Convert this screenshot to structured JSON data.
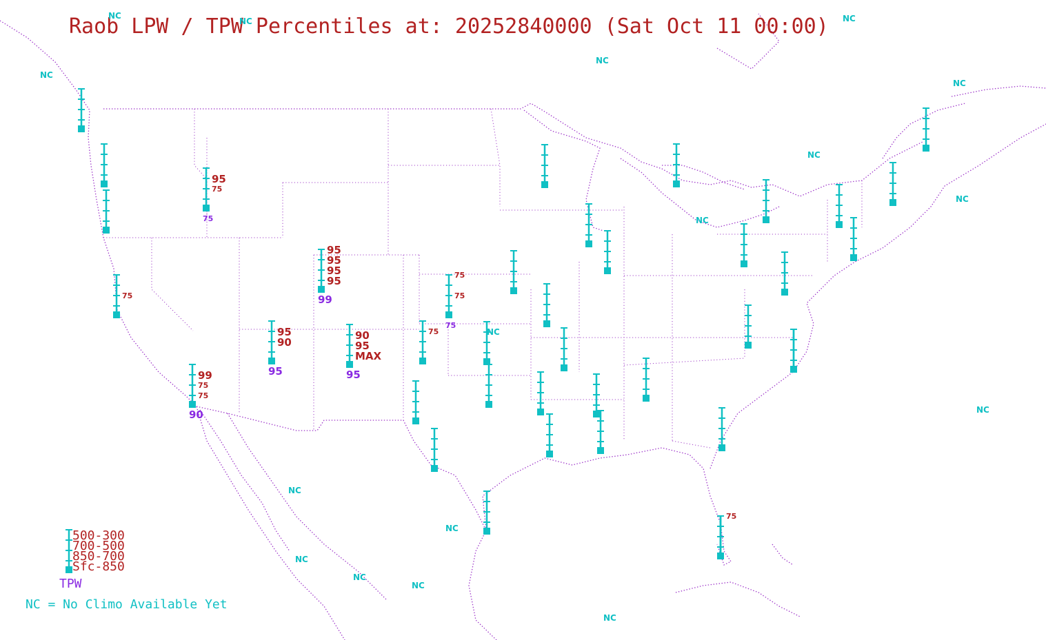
{
  "title": "Raob LPW / TPW Percentiles at: 20252840000 (Sat Oct 11 00:00)",
  "colors": {
    "title": "#b22222",
    "tpw": "#8a2be2",
    "station": "#10c0c4",
    "map_lines": "#9b30c8"
  },
  "nc_label": "NC",
  "legend": {
    "layers": [
      "500-300",
      "700-500",
      "850-700",
      "Sfc-850"
    ],
    "tpw_label": "TPW",
    "note": "NC = No Climo Available Yet"
  },
  "stations": [
    {
      "id": "s01",
      "layers": [
        "",
        "",
        "",
        ""
      ],
      "tpw": ""
    },
    {
      "id": "s02",
      "layers": [
        "",
        "",
        "",
        ""
      ],
      "tpw": ""
    },
    {
      "id": "s03",
      "layers": [
        "",
        "",
        "",
        ""
      ],
      "tpw": ""
    },
    {
      "id": "s04",
      "layers": [
        "",
        "95",
        "75",
        ""
      ],
      "tpw": "75"
    },
    {
      "id": "s05",
      "layers": [
        "",
        "",
        "75",
        ""
      ],
      "tpw": ""
    },
    {
      "id": "s06",
      "layers": [
        "95",
        "95",
        "95",
        "95"
      ],
      "tpw": "99"
    },
    {
      "id": "s07",
      "layers": [
        "",
        "95",
        "90",
        ""
      ],
      "tpw": "95"
    },
    {
      "id": "s08",
      "layers": [
        "",
        "90",
        "95",
        "MAX"
      ],
      "tpw": "95"
    },
    {
      "id": "s09",
      "layers": [
        "",
        "99",
        "75",
        "75"
      ],
      "tpw": "90"
    },
    {
      "id": "s10",
      "layers": [
        "75",
        "",
        "75",
        ""
      ],
      "tpw": "75"
    },
    {
      "id": "s11",
      "layers": [
        "",
        "75",
        "",
        ""
      ],
      "tpw": ""
    },
    {
      "id": "s12",
      "layers": [
        "",
        "",
        "",
        ""
      ],
      "tpw": ""
    },
    {
      "id": "s13",
      "layers": [
        "",
        "",
        "",
        ""
      ],
      "tpw": ""
    },
    {
      "id": "s14",
      "layers": [
        "",
        "",
        "",
        ""
      ],
      "tpw": ""
    },
    {
      "id": "s15",
      "layers": [
        "",
        "",
        "",
        ""
      ],
      "tpw": ""
    },
    {
      "id": "s16",
      "layers": [
        "",
        "",
        "",
        ""
      ],
      "tpw": ""
    },
    {
      "id": "s17",
      "layers": [
        "",
        "",
        "",
        ""
      ],
      "tpw": ""
    },
    {
      "id": "s18",
      "layers": [
        "",
        "",
        "",
        ""
      ],
      "tpw": ""
    },
    {
      "id": "s19",
      "layers": [
        "",
        "",
        "",
        ""
      ],
      "tpw": ""
    },
    {
      "id": "s20",
      "layers": [
        "",
        "",
        "",
        ""
      ],
      "tpw": ""
    },
    {
      "id": "s21",
      "layers": [
        "",
        "",
        "",
        ""
      ],
      "tpw": ""
    },
    {
      "id": "s22",
      "layers": [
        "",
        "",
        "",
        ""
      ],
      "tpw": ""
    },
    {
      "id": "s23",
      "layers": [
        "",
        "",
        "",
        ""
      ],
      "tpw": ""
    },
    {
      "id": "s24",
      "layers": [
        "",
        "",
        "",
        ""
      ],
      "tpw": ""
    },
    {
      "id": "s25",
      "layers": [
        "",
        "",
        "",
        ""
      ],
      "tpw": ""
    },
    {
      "id": "s26",
      "layers": [
        "",
        "",
        "",
        ""
      ],
      "tpw": ""
    },
    {
      "id": "s27",
      "layers": [
        "",
        "",
        "",
        ""
      ],
      "tpw": ""
    },
    {
      "id": "s28",
      "layers": [
        "",
        "",
        "",
        ""
      ],
      "tpw": ""
    },
    {
      "id": "s29",
      "layers": [
        "",
        "",
        "",
        ""
      ],
      "tpw": ""
    },
    {
      "id": "s30",
      "layers": [
        "",
        "",
        "",
        ""
      ],
      "tpw": ""
    },
    {
      "id": "s31",
      "layers": [
        "",
        "",
        "",
        ""
      ],
      "tpw": ""
    },
    {
      "id": "s32",
      "layers": [
        "",
        "",
        "",
        ""
      ],
      "tpw": ""
    },
    {
      "id": "s33",
      "layers": [
        "",
        "",
        "",
        ""
      ],
      "tpw": ""
    },
    {
      "id": "s34",
      "layers": [
        "",
        "",
        "",
        ""
      ],
      "tpw": ""
    },
    {
      "id": "s35",
      "layers": [
        "",
        "",
        "",
        ""
      ],
      "tpw": ""
    },
    {
      "id": "s36",
      "layers": [
        "",
        "",
        "",
        ""
      ],
      "tpw": ""
    },
    {
      "id": "s37",
      "layers": [
        "",
        "",
        "",
        ""
      ],
      "tpw": ""
    },
    {
      "id": "s38",
      "layers": [
        "",
        "",
        "",
        ""
      ],
      "tpw": ""
    },
    {
      "id": "s39",
      "layers": [
        "",
        "",
        "",
        ""
      ],
      "tpw": ""
    },
    {
      "id": "s40",
      "layers": [
        "",
        "",
        "",
        ""
      ],
      "tpw": ""
    },
    {
      "id": "s41",
      "layers": [
        "",
        "",
        "",
        ""
      ],
      "tpw": ""
    },
    {
      "id": "s42",
      "layers": [
        "75",
        "",
        "",
        ""
      ],
      "tpw": ""
    }
  ]
}
